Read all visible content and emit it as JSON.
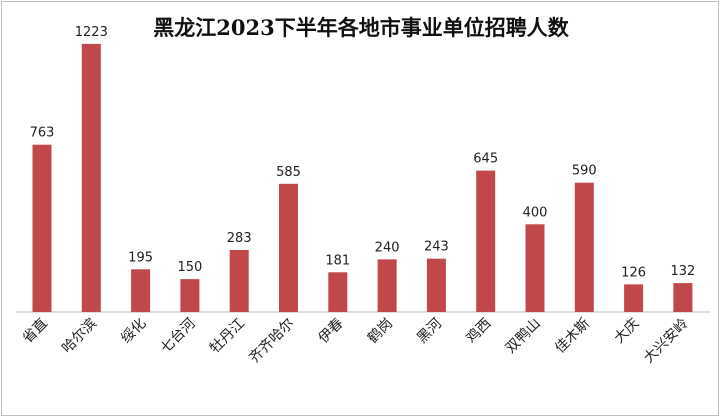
{
  "chart_data": {
    "type": "bar",
    "title": "黑龙江2023下半年各地市事业单位招聘人数",
    "categories": [
      "省直",
      "哈尔滨",
      "绥化",
      "七台河",
      "牡丹江",
      "齐齐哈尔",
      "伊春",
      "鹤岗",
      "黑河",
      "鸡西",
      "双鸭山",
      "佳木斯",
      "大庆",
      "大兴安岭"
    ],
    "values": [
      763,
      1223,
      195,
      150,
      283,
      585,
      181,
      240,
      243,
      645,
      400,
      590,
      126,
      132
    ],
    "ylim": [
      0,
      1300
    ],
    "grid": false,
    "legend": "none",
    "colors": {
      "bar": "#C0474A",
      "baseline": "#bfbfbf"
    }
  }
}
